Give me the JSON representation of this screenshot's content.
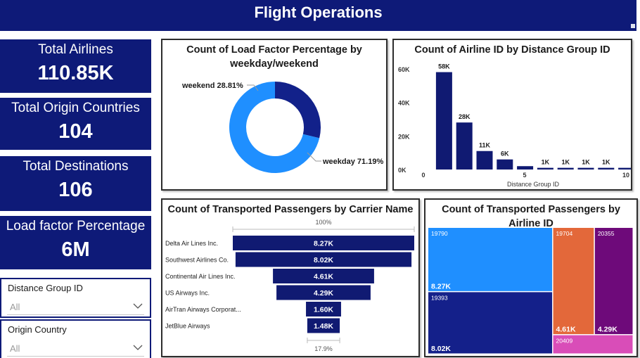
{
  "header": {
    "title": "Flight Operations"
  },
  "kpis": [
    {
      "label": "Total Airlines",
      "value": "110.85K"
    },
    {
      "label": "Total Origin Countries",
      "value": "104"
    },
    {
      "label": "Total Destinations",
      "value": "106"
    },
    {
      "label": "Load factor Percentage",
      "value": "6M"
    }
  ],
  "slicers": [
    {
      "label": "Distance Group ID",
      "value": "All"
    },
    {
      "label": "Origin Country",
      "value": "All"
    }
  ],
  "colors": {
    "navy": "#0e1a78",
    "bar": "#101a72",
    "light_blue": "#1f8fff",
    "orange": "#e3683a",
    "purple": "#6e0a7a",
    "pink": "#d94db8"
  },
  "chart_data": [
    {
      "type": "pie",
      "title": "Count of Load Factor Percentage by weekday/weekend",
      "categories": [
        "weekend",
        "weekday"
      ],
      "values": [
        28.81,
        71.19
      ],
      "data_labels": [
        "weekend 28.81%",
        "weekday 71.19%"
      ],
      "colors": [
        "#12218a",
        "#1f8fff"
      ],
      "donut": true
    },
    {
      "type": "bar",
      "title": "Count of Airline ID by Distance Group ID",
      "xlabel": "Distance Group ID",
      "ylabel": "",
      "x": [
        1,
        2,
        3,
        4,
        5,
        6,
        7,
        8,
        9,
        10
      ],
      "values": [
        58000,
        28000,
        11000,
        6000,
        2000,
        1000,
        1000,
        1000,
        1000,
        1000
      ],
      "data_labels": [
        "58K",
        "28K",
        "11K",
        "6K",
        "",
        "1K",
        "1K",
        "1K",
        "1K",
        ""
      ],
      "yticks": [
        "0K",
        "20K",
        "40K",
        "60K"
      ],
      "ytick_values": [
        0,
        20000,
        40000,
        60000
      ],
      "xticks": [
        "0",
        "5",
        "10"
      ],
      "xtick_values": [
        0,
        5,
        10
      ],
      "xlim": [
        0,
        10
      ],
      "ylim": [
        0,
        62000
      ]
    },
    {
      "type": "bar",
      "subtype": "funnel",
      "title": "Count of Transported Passengers by Carrier Name",
      "categories": [
        "Delta Air Lines Inc.",
        "Southwest Airlines Co.",
        "Continental Air Lines Inc.",
        "US Airways Inc.",
        "AirTran Airways Corporat...",
        "JetBlue Airways"
      ],
      "values": [
        8270,
        8020,
        4610,
        4290,
        1600,
        1480
      ],
      "data_labels": [
        "8.27K",
        "8.02K",
        "4.61K",
        "4.29K",
        "1.60K",
        "1.48K"
      ],
      "top_percent": "100%",
      "bottom_percent": "17.9%"
    },
    {
      "type": "heatmap",
      "subtype": "treemap",
      "title": "Count of Transported Passengers by Airline ID",
      "categories": [
        "19790",
        "19393",
        "19704",
        "20355",
        "20409"
      ],
      "values": [
        8270,
        8020,
        4610,
        4290,
        1600
      ],
      "value_labels": [
        "8.27K",
        "8.02K",
        "4.61K",
        "4.29K",
        ""
      ],
      "colors": [
        "#1f8fff",
        "#14208a",
        "#e3683a",
        "#6e0a7a",
        "#d94db8"
      ]
    }
  ]
}
